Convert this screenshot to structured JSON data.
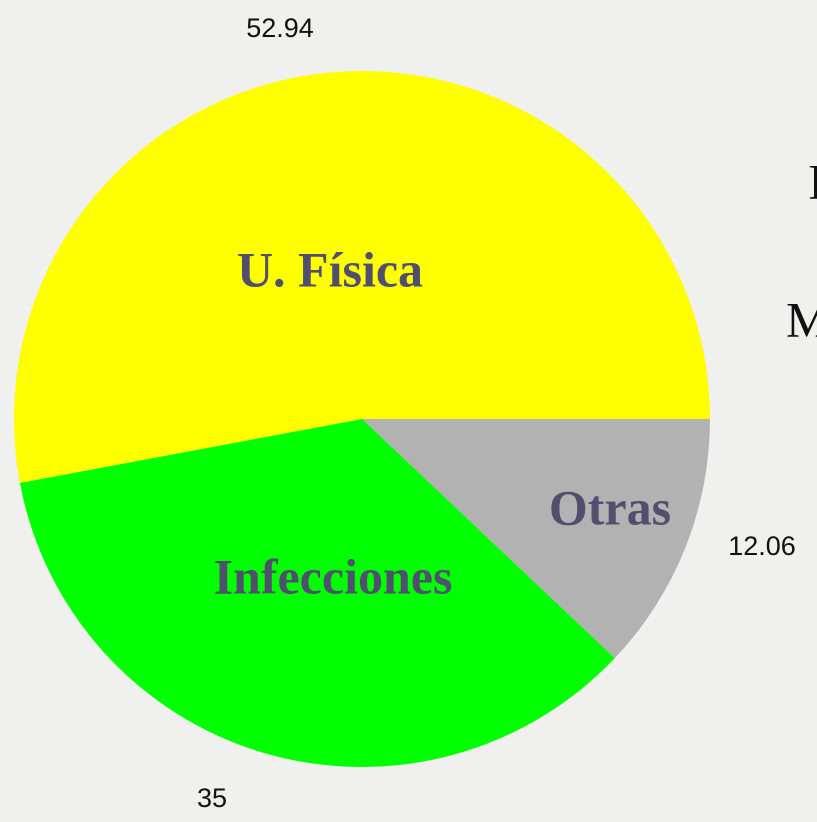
{
  "chart_data": {
    "type": "pie",
    "categories": [
      "Otras",
      "Infecciones",
      "U. Física"
    ],
    "values": [
      12.06,
      35,
      52.94
    ],
    "colors": [
      "#b2b2b2",
      "#00ff00",
      "#ffff00"
    ],
    "annotations": [
      "I",
      "M"
    ]
  }
}
